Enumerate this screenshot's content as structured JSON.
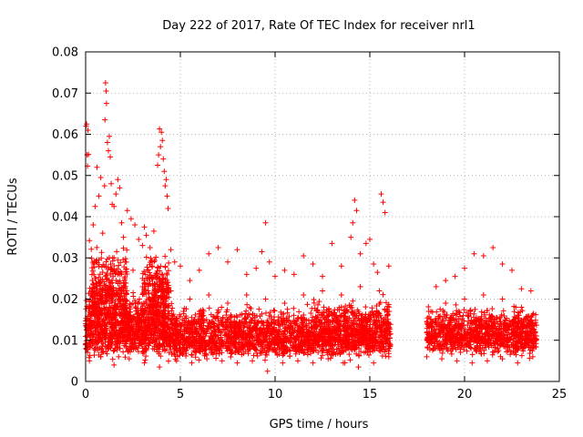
{
  "chart_data": {
    "type": "scatter",
    "title": "Day 222 of 2017, Rate Of TEC Index for receiver nrl1",
    "xlabel": "GPS time / hours",
    "ylabel": "ROTI / TECUs",
    "xlim": [
      0,
      25
    ],
    "ylim": [
      0,
      0.08
    ],
    "xticks": [
      0,
      5,
      10,
      15,
      20,
      25
    ],
    "yticks": [
      0,
      0.01,
      0.02,
      0.03,
      0.04,
      0.05,
      0.06,
      0.07,
      0.08
    ],
    "xtick_labels": [
      "0",
      "5",
      "10",
      "15",
      "20",
      "25"
    ],
    "ytick_labels": [
      "0",
      "0.01",
      "0.02",
      "0.03",
      "0.04",
      "0.05",
      "0.06",
      "0.07",
      "0.08"
    ],
    "grid": true,
    "marker": "+",
    "color": "#ff0000",
    "series": [
      {
        "name": "ROTI",
        "points": [
          [
            0.02,
            0.062
          ],
          [
            0.05,
            0.0625
          ],
          [
            0.08,
            0.055
          ],
          [
            0.1,
            0.0523
          ],
          [
            0.12,
            0.061
          ],
          [
            0.15,
            0.0551
          ],
          [
            0.2,
            0.0342
          ],
          [
            0.3,
            0.0321
          ],
          [
            0.4,
            0.038
          ],
          [
            0.5,
            0.0425
          ],
          [
            0.6,
            0.052
          ],
          [
            0.7,
            0.045
          ],
          [
            0.8,
            0.0495
          ],
          [
            0.9,
            0.036
          ],
          [
            1.0,
            0.0475
          ],
          [
            1.02,
            0.0635
          ],
          [
            1.05,
            0.0725
          ],
          [
            1.08,
            0.0705
          ],
          [
            1.1,
            0.0675
          ],
          [
            1.15,
            0.058
          ],
          [
            1.2,
            0.056
          ],
          [
            1.25,
            0.0595
          ],
          [
            1.3,
            0.0545
          ],
          [
            1.35,
            0.048
          ],
          [
            1.4,
            0.043
          ],
          [
            1.5,
            0.0425
          ],
          [
            1.6,
            0.0455
          ],
          [
            1.7,
            0.049
          ],
          [
            1.8,
            0.047
          ],
          [
            1.9,
            0.0385
          ],
          [
            2.0,
            0.035
          ],
          [
            2.2,
            0.0415
          ],
          [
            2.4,
            0.0395
          ],
          [
            2.6,
            0.038
          ],
          [
            2.8,
            0.0345
          ],
          [
            3.0,
            0.033
          ],
          [
            3.1,
            0.0375
          ],
          [
            3.2,
            0.0355
          ],
          [
            3.4,
            0.0325
          ],
          [
            3.6,
            0.0365
          ],
          [
            3.8,
            0.0525
          ],
          [
            3.85,
            0.055
          ],
          [
            3.9,
            0.0613
          ],
          [
            3.95,
            0.057
          ],
          [
            4.0,
            0.0605
          ],
          [
            4.05,
            0.0585
          ],
          [
            4.1,
            0.054
          ],
          [
            4.15,
            0.051
          ],
          [
            4.2,
            0.0475
          ],
          [
            4.25,
            0.049
          ],
          [
            4.3,
            0.045
          ],
          [
            4.35,
            0.042
          ],
          [
            4.5,
            0.032
          ],
          [
            4.7,
            0.029
          ],
          [
            5.0,
            0.028
          ],
          [
            5.5,
            0.0245
          ],
          [
            6.0,
            0.027
          ],
          [
            6.5,
            0.031
          ],
          [
            7.0,
            0.0325
          ],
          [
            7.5,
            0.029
          ],
          [
            8.0,
            0.032
          ],
          [
            8.5,
            0.026
          ],
          [
            9.0,
            0.0275
          ],
          [
            9.3,
            0.0315
          ],
          [
            9.5,
            0.0385
          ],
          [
            9.7,
            0.029
          ],
          [
            10.0,
            0.0255
          ],
          [
            10.5,
            0.027
          ],
          [
            11.0,
            0.026
          ],
          [
            11.5,
            0.0305
          ],
          [
            12.0,
            0.0285
          ],
          [
            12.5,
            0.0255
          ],
          [
            13.0,
            0.0335
          ],
          [
            13.5,
            0.028
          ],
          [
            14.0,
            0.035
          ],
          [
            14.1,
            0.0385
          ],
          [
            14.2,
            0.044
          ],
          [
            14.3,
            0.0415
          ],
          [
            14.5,
            0.031
          ],
          [
            14.8,
            0.0335
          ],
          [
            15.0,
            0.0345
          ],
          [
            15.2,
            0.0285
          ],
          [
            15.4,
            0.0265
          ],
          [
            15.6,
            0.0455
          ],
          [
            15.7,
            0.0435
          ],
          [
            15.8,
            0.041
          ],
          [
            16.0,
            0.028
          ],
          [
            18.5,
            0.023
          ],
          [
            19.0,
            0.0245
          ],
          [
            19.5,
            0.0255
          ],
          [
            20.0,
            0.0275
          ],
          [
            20.5,
            0.031
          ],
          [
            21.0,
            0.0305
          ],
          [
            21.5,
            0.0325
          ],
          [
            22.0,
            0.0285
          ],
          [
            22.5,
            0.027
          ],
          [
            23.0,
            0.0225
          ],
          [
            23.5,
            0.022
          ],
          [
            0.5,
            0.025
          ],
          [
            1.0,
            0.028
          ],
          [
            1.5,
            0.03
          ],
          [
            2.0,
            0.024
          ],
          [
            2.5,
            0.027
          ],
          [
            3.0,
            0.025
          ],
          [
            3.5,
            0.028
          ],
          [
            4.0,
            0.026
          ],
          [
            4.5,
            0.022
          ],
          [
            5.5,
            0.02
          ],
          [
            6.5,
            0.021
          ],
          [
            7.5,
            0.019
          ],
          [
            8.5,
            0.021
          ],
          [
            9.5,
            0.02
          ],
          [
            10.5,
            0.019
          ],
          [
            11.5,
            0.021
          ],
          [
            12.5,
            0.022
          ],
          [
            13.5,
            0.021
          ],
          [
            14.5,
            0.023
          ],
          [
            15.5,
            0.022
          ],
          [
            19.0,
            0.019
          ],
          [
            20.0,
            0.02
          ],
          [
            21.0,
            0.021
          ],
          [
            22.0,
            0.02
          ],
          [
            23.0,
            0.018
          ],
          [
            0.2,
            0.005
          ],
          [
            0.8,
            0.006
          ],
          [
            1.5,
            0.004
          ],
          [
            2.3,
            0.0055
          ],
          [
            3.1,
            0.0045
          ],
          [
            3.9,
            0.0035
          ],
          [
            4.8,
            0.005
          ],
          [
            5.6,
            0.0045
          ],
          [
            6.4,
            0.0055
          ],
          [
            7.2,
            0.005
          ],
          [
            8.0,
            0.0045
          ],
          [
            8.8,
            0.005
          ],
          [
            9.6,
            0.0025
          ],
          [
            10.4,
            0.0045
          ],
          [
            11.2,
            0.005
          ],
          [
            12.0,
            0.0045
          ],
          [
            12.8,
            0.0055
          ],
          [
            13.6,
            0.0045
          ],
          [
            14.4,
            0.0035
          ],
          [
            15.2,
            0.0045
          ],
          [
            16.0,
            0.006
          ],
          [
            18.0,
            0.006
          ],
          [
            18.8,
            0.0055
          ],
          [
            19.6,
            0.005
          ],
          [
            20.4,
            0.0045
          ],
          [
            21.2,
            0.005
          ],
          [
            22.0,
            0.0055
          ],
          [
            22.8,
            0.0045
          ],
          [
            23.6,
            0.006
          ]
        ],
        "dense_bands": [
          {
            "x_from": 0.0,
            "x_to": 4.6,
            "y_low": 0.004,
            "y_high": 0.024,
            "count": 1100
          },
          {
            "x_from": 0.3,
            "x_to": 2.2,
            "y_low": 0.012,
            "y_high": 0.036,
            "count": 300
          },
          {
            "x_from": 3.0,
            "x_to": 4.4,
            "y_low": 0.012,
            "y_high": 0.034,
            "count": 220
          },
          {
            "x_from": 4.6,
            "x_to": 12.0,
            "y_low": 0.004,
            "y_high": 0.02,
            "count": 1300
          },
          {
            "x_from": 12.0,
            "x_to": 16.1,
            "y_low": 0.004,
            "y_high": 0.022,
            "count": 900
          },
          {
            "x_from": 18.0,
            "x_to": 23.8,
            "y_low": 0.005,
            "y_high": 0.02,
            "count": 1050
          }
        ],
        "data_gap_hours": [
          16.1,
          18.0
        ]
      }
    ]
  }
}
